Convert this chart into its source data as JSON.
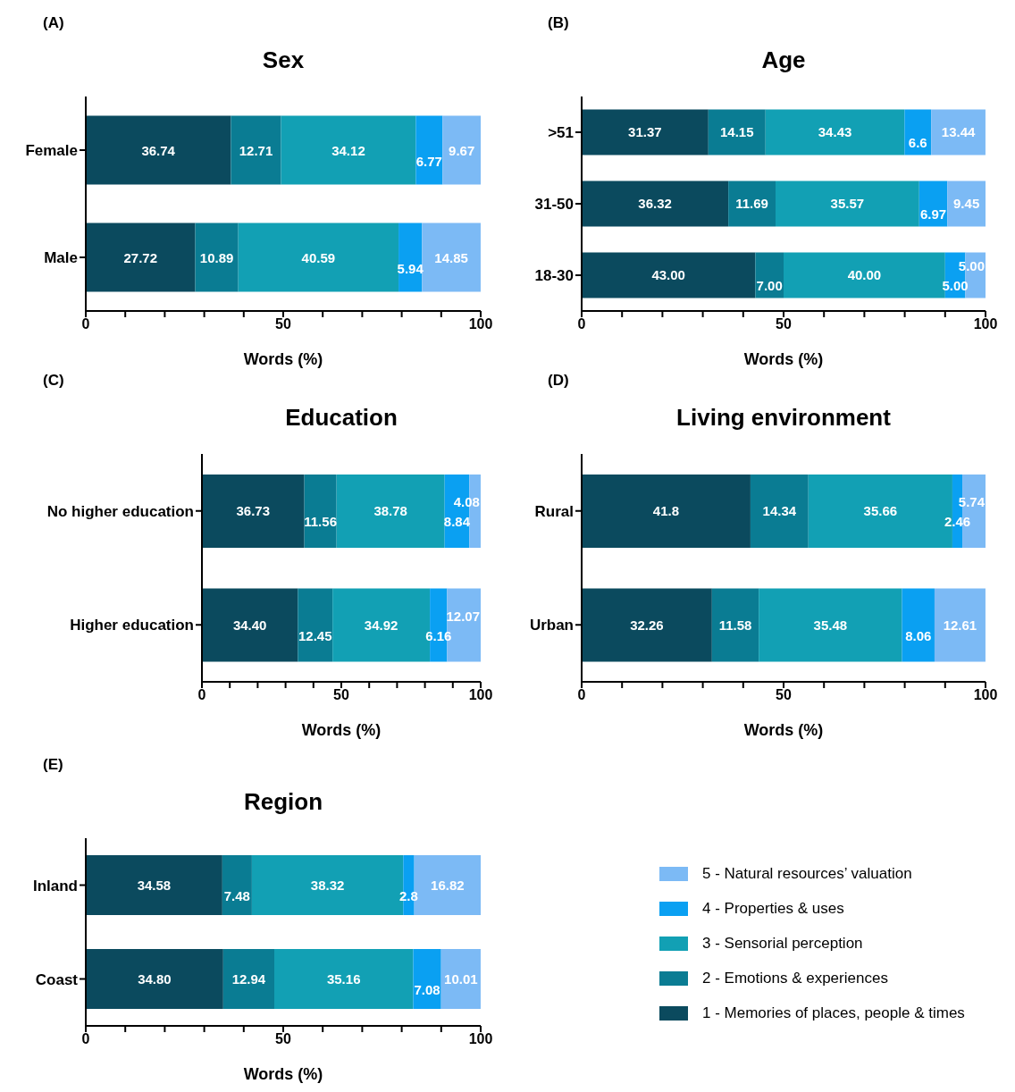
{
  "chart_data": [
    {
      "type": "bar",
      "orientation": "horizontal",
      "stacked": true,
      "title": "Sex",
      "xlabel": "Words (%)",
      "annotations": [
        "(A)"
      ],
      "categories": [
        "Female",
        "Male"
      ],
      "xlim": [
        0,
        100
      ],
      "xticks": [
        0,
        {
          "value": 10,
          "label": null
        },
        {
          "value": 20,
          "label": null
        },
        {
          "value": 30,
          "label": null
        },
        {
          "value": 40,
          "label": null
        },
        50,
        {
          "value": 60,
          "label": null
        },
        {
          "value": 70,
          "label": null
        },
        {
          "value": 80,
          "label": null
        },
        {
          "value": 90,
          "label": null
        },
        100
      ],
      "series": [
        {
          "color": "#0b4a5e",
          "values": [
            36.74,
            27.72
          ],
          "value_labels": [
            "36.74",
            "27.72"
          ]
        },
        {
          "color": "#0a7c93",
          "values": [
            12.71,
            10.89
          ],
          "value_labels": [
            "12.71",
            "10.89"
          ]
        },
        {
          "color": "#12a0b4",
          "values": [
            34.12,
            40.59
          ],
          "value_labels": [
            "34.12",
            "40.59"
          ]
        },
        {
          "color": "#0aa0f2",
          "values": [
            6.77,
            5.94
          ],
          "value_labels": [
            "6.77",
            "5.94"
          ]
        },
        {
          "color": "#7cbaf5",
          "values": [
            9.67,
            14.85
          ],
          "value_labels": [
            "9.67",
            "14.85"
          ]
        }
      ]
    },
    {
      "type": "bar",
      "orientation": "horizontal",
      "stacked": true,
      "title": "Age",
      "xlabel": "Words (%)",
      "annotations": [
        "(B)"
      ],
      "categories": [
        ">51",
        "31-50",
        "18-30"
      ],
      "xlim": [
        0,
        100
      ],
      "xticks": [
        0,
        {
          "value": 10,
          "label": null
        },
        {
          "value": 20,
          "label": null
        },
        {
          "value": 30,
          "label": null
        },
        {
          "value": 40,
          "label": null
        },
        50,
        {
          "value": 60,
          "label": null
        },
        {
          "value": 70,
          "label": null
        },
        {
          "value": 80,
          "label": null
        },
        {
          "value": 90,
          "label": null
        },
        100
      ],
      "series": [
        {
          "color": "#0b4a5e",
          "values": [
            31.37,
            36.32,
            43
          ],
          "value_labels": [
            "31.37",
            "36.32",
            "43.00"
          ]
        },
        {
          "color": "#0a7c93",
          "values": [
            14.15,
            11.69,
            7
          ],
          "value_labels": [
            "14.15",
            "11.69",
            "7.00"
          ]
        },
        {
          "color": "#12a0b4",
          "values": [
            34.43,
            35.57,
            40
          ],
          "value_labels": [
            "34.43",
            "35.57",
            "40.00"
          ]
        },
        {
          "color": "#0aa0f2",
          "values": [
            6.6,
            6.97,
            5
          ],
          "value_labels": [
            "6.6",
            "6.97",
            "5.00"
          ]
        },
        {
          "color": "#7cbaf5",
          "values": [
            13.44,
            9.45,
            5
          ],
          "value_labels": [
            "13.44",
            "9.45",
            "5.00"
          ]
        }
      ]
    },
    {
      "type": "bar",
      "orientation": "horizontal",
      "stacked": true,
      "title": "Education",
      "xlabel": "Words (%)",
      "annotations": [
        "(C)"
      ],
      "categories": [
        "No higher education",
        "Higher education"
      ],
      "xlim": [
        0,
        100
      ],
      "xticks": [
        0,
        {
          "value": 10,
          "label": null
        },
        {
          "value": 20,
          "label": null
        },
        {
          "value": 30,
          "label": null
        },
        {
          "value": 40,
          "label": null
        },
        50,
        {
          "value": 60,
          "label": null
        },
        {
          "value": 70,
          "label": null
        },
        {
          "value": 80,
          "label": null
        },
        {
          "value": 90,
          "label": null
        },
        100
      ],
      "series": [
        {
          "color": "#0b4a5e",
          "values": [
            36.73,
            34.4
          ],
          "value_labels": [
            "36.73",
            "34.40"
          ]
        },
        {
          "color": "#0a7c93",
          "values": [
            11.56,
            12.45
          ],
          "value_labels": [
            "11.56",
            "12.45"
          ]
        },
        {
          "color": "#12a0b4",
          "values": [
            38.78,
            34.92
          ],
          "value_labels": [
            "38.78",
            "34.92"
          ]
        },
        {
          "color": "#0aa0f2",
          "values": [
            8.84,
            6.16
          ],
          "value_labels": [
            "8.84",
            "6.16"
          ]
        },
        {
          "color": "#7cbaf5",
          "values": [
            4.08,
            12.07
          ],
          "value_labels": [
            "4.08",
            "12.07"
          ]
        }
      ]
    },
    {
      "type": "bar",
      "orientation": "horizontal",
      "stacked": true,
      "title": "Living environment",
      "xlabel": "Words (%)",
      "annotations": [
        "(D)"
      ],
      "categories": [
        "Rural",
        "Urban"
      ],
      "xlim": [
        0,
        100
      ],
      "xticks": [
        0,
        {
          "value": 10,
          "label": null
        },
        {
          "value": 20,
          "label": null
        },
        {
          "value": 30,
          "label": null
        },
        {
          "value": 40,
          "label": null
        },
        50,
        {
          "value": 60,
          "label": null
        },
        {
          "value": 70,
          "label": null
        },
        {
          "value": 80,
          "label": null
        },
        {
          "value": 90,
          "label": null
        },
        100
      ],
      "series": [
        {
          "color": "#0b4a5e",
          "values": [
            41.8,
            32.26
          ],
          "value_labels": [
            "41.8",
            "32.26"
          ]
        },
        {
          "color": "#0a7c93",
          "values": [
            14.34,
            11.58
          ],
          "value_labels": [
            "14.34",
            "11.58"
          ]
        },
        {
          "color": "#12a0b4",
          "values": [
            35.66,
            35.48
          ],
          "value_labels": [
            "35.66",
            "35.48"
          ]
        },
        {
          "color": "#0aa0f2",
          "values": [
            2.46,
            8.06
          ],
          "value_labels": [
            "2.46",
            "8.06"
          ]
        },
        {
          "color": "#7cbaf5",
          "values": [
            5.74,
            12.61
          ],
          "value_labels": [
            "5.74",
            "12.61"
          ]
        }
      ]
    },
    {
      "type": "bar",
      "orientation": "horizontal",
      "stacked": true,
      "title": "Region",
      "xlabel": "Words (%)",
      "annotations": [
        "(E)"
      ],
      "legend": "right",
      "categories": [
        "Inland",
        "Coast"
      ],
      "xlim": [
        0,
        100
      ],
      "xticks": [
        0,
        {
          "value": 10,
          "label": null
        },
        {
          "value": 20,
          "label": null
        },
        {
          "value": 30,
          "label": null
        },
        {
          "value": 40,
          "label": null
        },
        50,
        {
          "value": 60,
          "label": null
        },
        {
          "value": 70,
          "label": null
        },
        {
          "value": 80,
          "label": null
        },
        {
          "value": 90,
          "label": null
        },
        100
      ],
      "series": [
        {
          "name": "1 - Memories of places, people & times",
          "color": "#0b4a5e",
          "values": [
            34.58,
            34.8
          ],
          "value_labels": [
            "34.58",
            "34.80"
          ]
        },
        {
          "name": "2 - Emotions & experiences",
          "color": "#0a7c93",
          "values": [
            7.48,
            12.94
          ],
          "value_labels": [
            "7.48",
            "12.94"
          ]
        },
        {
          "name": "3 - Sensorial perception",
          "color": "#12a0b4",
          "values": [
            38.32,
            35.16
          ],
          "value_labels": [
            "38.32",
            "35.16"
          ]
        },
        {
          "name": "4 - Properties & uses",
          "color": "#0aa0f2",
          "values": [
            2.8,
            7.08
          ],
          "value_labels": [
            "2.8",
            "7.08"
          ]
        },
        {
          "name": "5 - Natural resources’ valuation",
          "color": "#7cbaf5",
          "values": [
            16.82,
            10.01
          ],
          "value_labels": [
            "16.82",
            "10.01"
          ]
        }
      ]
    }
  ]
}
